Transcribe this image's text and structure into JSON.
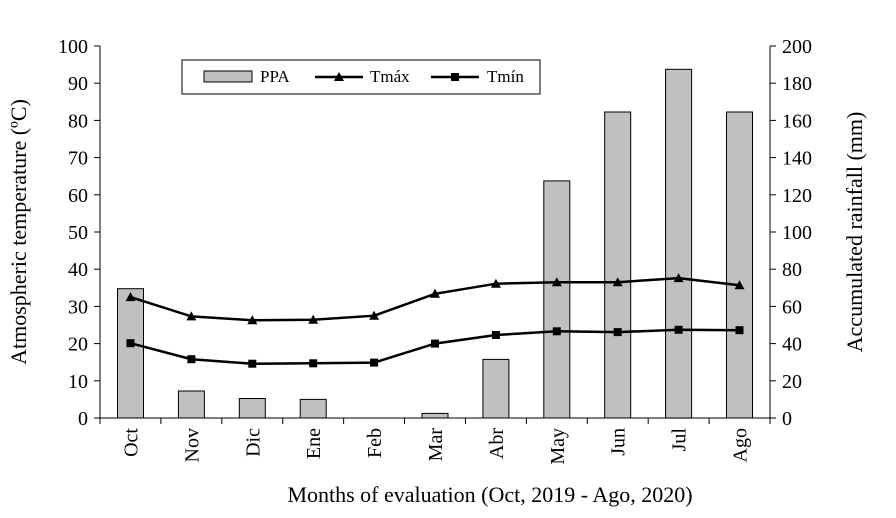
{
  "chart_data": {
    "type": "bar",
    "categories": [
      "Oct",
      "Nov",
      "Dic",
      "Ene",
      "Feb",
      "Mar",
      "Abr",
      "May",
      "Jun",
      "Jul",
      "Ago"
    ],
    "series": [
      {
        "name": "PPA",
        "type": "bar",
        "axis": "right",
        "values": [
          69.5,
          14.5,
          10.5,
          10,
          0,
          2.5,
          31.5,
          127.5,
          164.5,
          187.5,
          164.5
        ]
      },
      {
        "name": "Tmáx",
        "type": "line",
        "axis": "left",
        "marker": "triangle",
        "values": [
          32.5,
          27.3,
          26.3,
          26.4,
          27.5,
          33.4,
          36.1,
          36.5,
          36.5,
          37.6,
          35.7
        ]
      },
      {
        "name": "Tmín",
        "type": "line",
        "axis": "left",
        "marker": "square",
        "values": [
          20.1,
          15.8,
          14.6,
          14.7,
          14.9,
          20.0,
          22.3,
          23.3,
          23.1,
          23.7,
          23.6
        ]
      }
    ],
    "xlabel": "Months of evaluation (Oct, 2019 - Ago, 2020)",
    "ylabel": "Atmospheric temperature (ºC)",
    "y2label": "Accumulated rainfall (mm)",
    "ylim": [
      0,
      100
    ],
    "y2lim": [
      0,
      200
    ],
    "yticks": [
      "0",
      "10",
      "20",
      "30",
      "40",
      "50",
      "60",
      "70",
      "80",
      "90",
      "100"
    ],
    "y2ticks": [
      "0",
      "20",
      "40",
      "60",
      "80",
      "100",
      "120",
      "140",
      "160",
      "180",
      "200"
    ],
    "grid": false,
    "legend_position": "top-left",
    "colors": {
      "bar_fill": "#c0c0c0",
      "bar_stroke": "#000000",
      "line": "#000000"
    }
  }
}
